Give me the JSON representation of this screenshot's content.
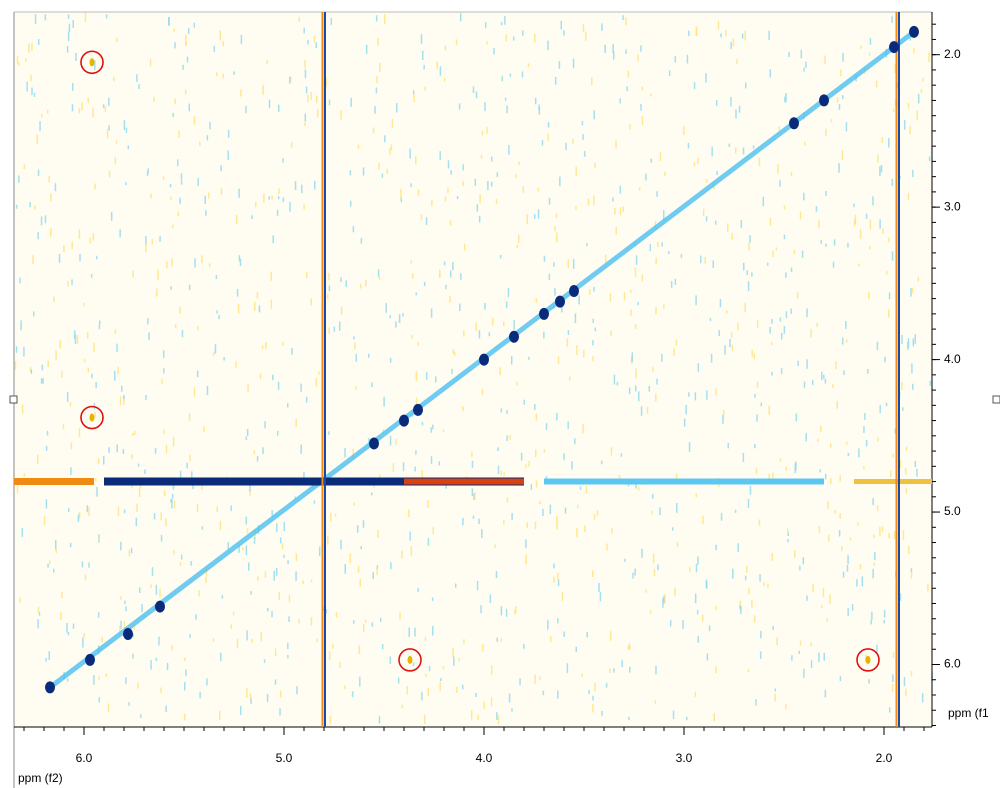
{
  "chart_data": {
    "type": "nmr2d",
    "x_label": "ppm (f2)",
    "y_label": "ppm (f1",
    "xlim": [
      6.35,
      1.76
    ],
    "ylim": [
      1.72,
      6.41
    ],
    "xticks": [
      {
        "value": 6,
        "label": "6.0"
      },
      {
        "value": 5,
        "label": "5.0"
      },
      {
        "value": 4,
        "label": "4.0"
      },
      {
        "value": 3,
        "label": "3.0"
      },
      {
        "value": 2,
        "label": "2.0"
      }
    ],
    "yticks": [
      {
        "value": 2,
        "label": "2.0"
      },
      {
        "value": 3,
        "label": "3.0"
      },
      {
        "value": 4,
        "label": "4.0"
      },
      {
        "value": 5,
        "label": "5.0"
      },
      {
        "value": 6,
        "label": "6.0"
      }
    ],
    "vlines": [
      4.8,
      1.93
    ],
    "hlines": [
      4.8
    ],
    "series": [
      {
        "color": "#0a2a7a",
        "x": [
          6.17,
          5.97,
          5.78,
          5.62,
          4.55,
          4.4,
          4.33,
          4.0,
          3.85,
          3.7,
          3.62,
          3.55,
          2.45,
          2.3,
          1.95,
          1.85
        ],
        "values": [
          6.15,
          5.97,
          5.8,
          5.62,
          4.55,
          4.4,
          4.33,
          4.0,
          3.85,
          3.7,
          3.62,
          3.55,
          2.45,
          2.3,
          1.95,
          1.85
        ]
      },
      {
        "color": "#e8b400",
        "circle_color": "#dd1111",
        "x": [
          5.96,
          5.96,
          4.37,
          2.08
        ],
        "values": [
          2.05,
          4.38,
          5.97,
          5.97
        ]
      }
    ]
  }
}
